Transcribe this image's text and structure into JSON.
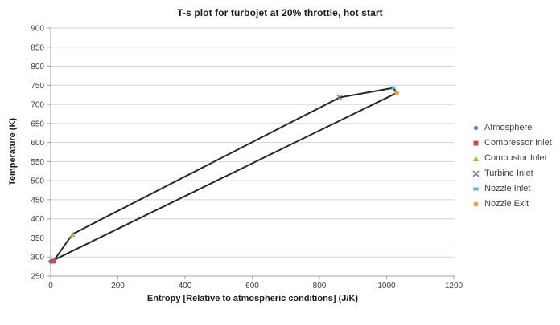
{
  "chart_data": {
    "type": "scatter",
    "title": "T-s plot for turbojet at 20% throttle, hot start",
    "xlabel": "Entropy [Relative to atmospheric conditions] (J/K)",
    "ylabel": "Temperature (K)",
    "xlim": [
      0,
      1200
    ],
    "ylim": [
      250,
      900
    ],
    "x_ticks": [
      0,
      200,
      400,
      600,
      800,
      1000,
      1200
    ],
    "y_ticks": [
      250,
      300,
      350,
      400,
      450,
      500,
      550,
      600,
      650,
      700,
      750,
      800,
      850,
      900
    ],
    "grid": "horizontal-major",
    "legend_position": "right",
    "series": [
      {
        "name": "Atmosphere",
        "marker": "diamond",
        "color": "#4F81BD",
        "points": [
          [
            0,
            288
          ]
        ]
      },
      {
        "name": "Compressor Inlet",
        "marker": "square",
        "color": "#C0504D",
        "points": [
          [
            8,
            289
          ]
        ]
      },
      {
        "name": "Combustor Inlet",
        "marker": "triangle",
        "color": "#9BBB59",
        "points": [
          [
            65,
            360
          ]
        ]
      },
      {
        "name": "Turbine Inlet",
        "marker": "x",
        "color": "#8064A2",
        "points": [
          [
            860,
            718
          ]
        ]
      },
      {
        "name": "Nozzle Inlet",
        "marker": "asterisk",
        "color": "#4BACC6",
        "points": [
          [
            1020,
            743
          ]
        ]
      },
      {
        "name": "Nozzle Exit",
        "marker": "circle",
        "color": "#F79646",
        "points": [
          [
            1030,
            730
          ]
        ]
      }
    ],
    "cycle_line": {
      "color": "#262626",
      "width": 2,
      "points": [
        [
          0,
          288
        ],
        [
          8,
          289
        ],
        [
          65,
          360
        ],
        [
          860,
          718
        ],
        [
          1020,
          743
        ],
        [
          1030,
          730
        ],
        [
          0,
          288
        ]
      ]
    },
    "colors": {
      "background": "#ffffff",
      "gridline": "#d4d4d4",
      "axis": "#9e9e9e",
      "tick_text": "#404040",
      "title_text": "#1a1a1a"
    }
  }
}
